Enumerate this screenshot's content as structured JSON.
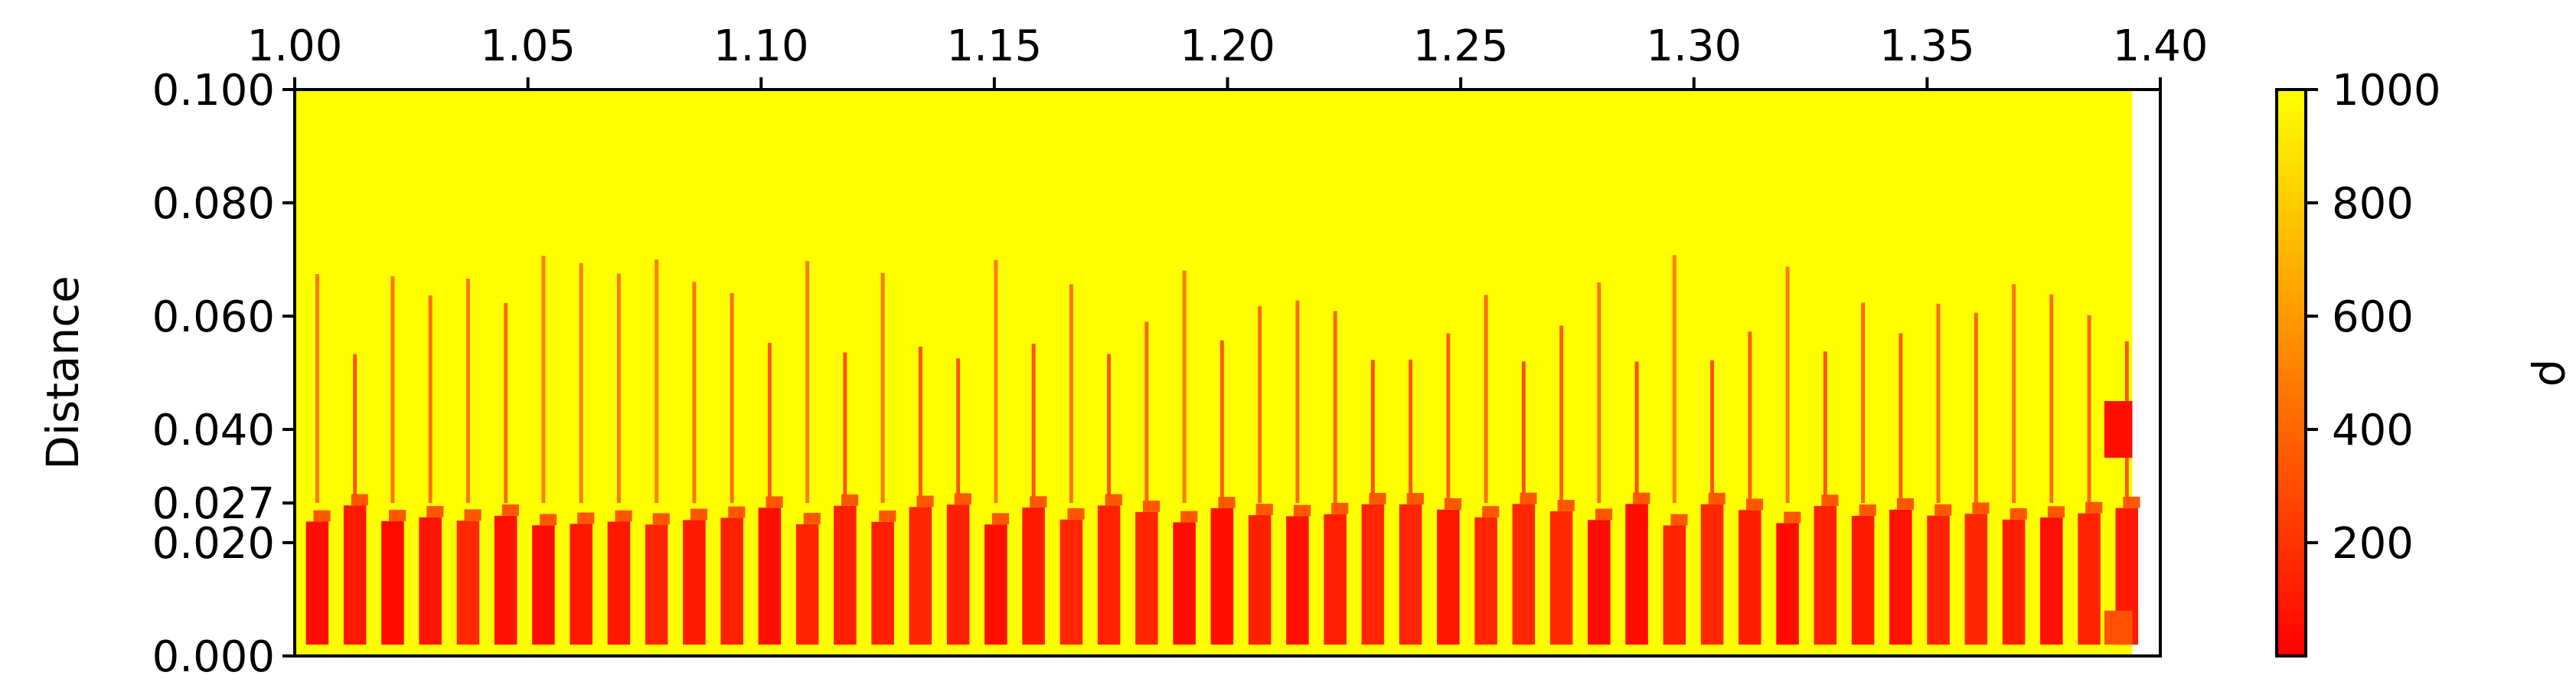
{
  "chart_data": {
    "type": "heatmap",
    "title": "",
    "xlabel": "",
    "ylabel": "Distance",
    "colorbar_label": "ρ",
    "xlim": [
      1.0,
      1.4
    ],
    "ylim": [
      0.0,
      0.1
    ],
    "x_axis_position": "top",
    "x_ticks": [
      1.0,
      1.05,
      1.1,
      1.15,
      1.2,
      1.25,
      1.3,
      1.35,
      1.4
    ],
    "x_tick_labels": [
      "1.00",
      "1.05",
      "1.10",
      "1.15",
      "1.20",
      "1.25",
      "1.30",
      "1.35",
      "1.40"
    ],
    "y_ticks": [
      0.0,
      0.02,
      0.027,
      0.04,
      0.06,
      0.08,
      0.1
    ],
    "y_tick_labels": [
      "0.000",
      "0.020",
      "0.027",
      "0.040",
      "0.060",
      "0.080",
      "0.100"
    ],
    "grid": false,
    "data_x_extent": [
      1.0,
      1.394
    ],
    "colorscale": {
      "name": "autumn",
      "min": 0,
      "max": 1000,
      "low_color": "#ff0000",
      "high_color": "#ffff00",
      "ticks": [
        200,
        400,
        600,
        800,
        1000
      ],
      "tick_labels": [
        "200",
        "400",
        "600",
        "800",
        "1000"
      ]
    },
    "structures": [
      {
        "feature": "background density",
        "rho": 1000,
        "region": "y 0.0–0.1 (everywhere outside features)"
      },
      {
        "feature": "low-density plumes near bottom",
        "rho_min": 40,
        "y_range": [
          0.0,
          0.027
        ],
        "count": 49,
        "x_start": 1.002,
        "x_end": 1.39
      },
      {
        "feature": "thin filaments",
        "rho_min": 300,
        "y_range": [
          0.027,
          0.071
        ],
        "count": 49
      },
      {
        "feature": "end band (upper)",
        "x_range": [
          1.388,
          1.394
        ],
        "y_range": [
          0.035,
          0.045
        ],
        "rho": 60
      },
      {
        "feature": "end band (lower)",
        "x_range": [
          1.388,
          1.394
        ],
        "y_range": [
          0.002,
          0.008
        ],
        "rho": 320
      }
    ]
  }
}
